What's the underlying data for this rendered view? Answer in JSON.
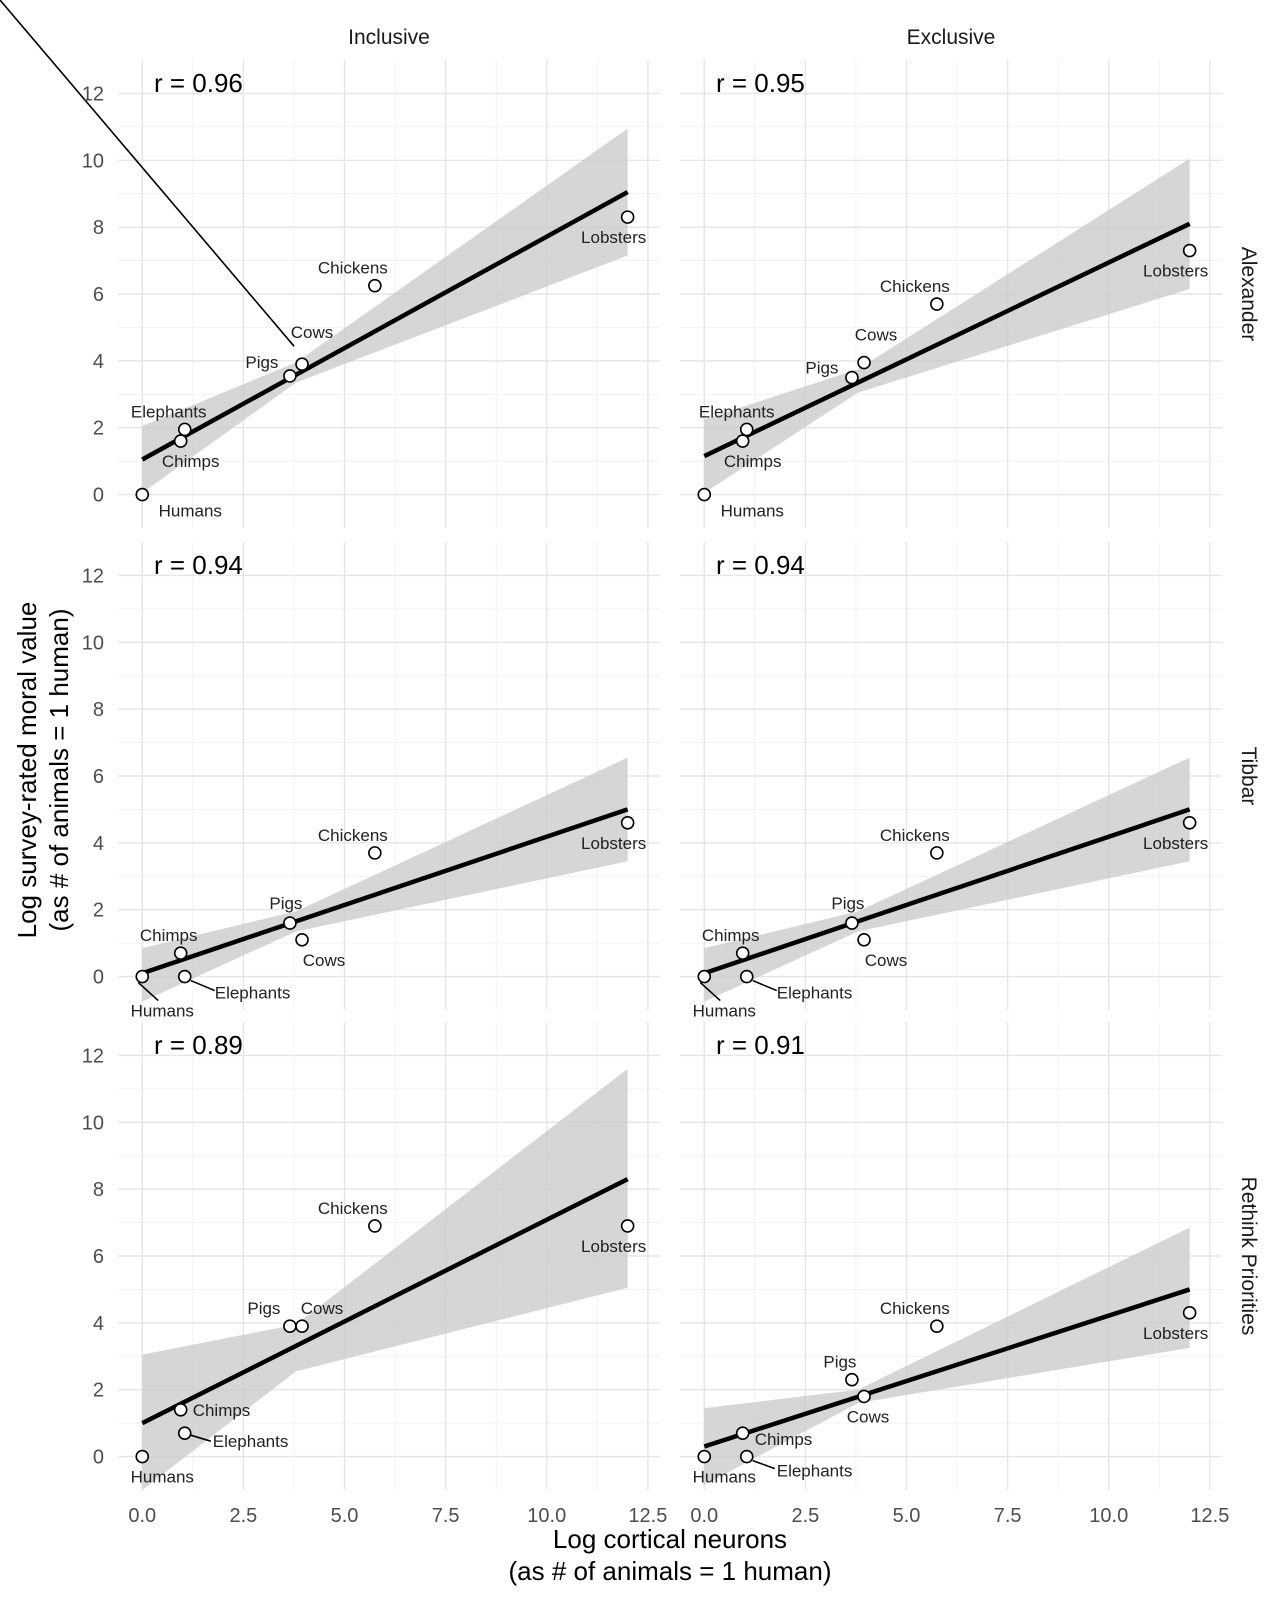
{
  "chart_data": {
    "type": "scatter",
    "facet_columns": [
      "Inclusive",
      "Exclusive"
    ],
    "facet_rows": [
      "Alexander",
      "Tibbar",
      "Rethink Priorities"
    ],
    "xlabel_line1": "Log cortical neurons",
    "xlabel_line2": "(as # of animals = 1 human)",
    "ylabel_line1": "Log survey-rated moral value",
    "ylabel_line2": "(as # of animals = 1 human)",
    "xlim": [
      -0.6,
      12.8
    ],
    "ylim": [
      -1,
      13
    ],
    "x_ticks": [
      "0.0",
      "2.5",
      "5.0",
      "7.5",
      "10.0",
      "12.5"
    ],
    "y_ticks": [
      "0",
      "2",
      "4",
      "6",
      "8",
      "10",
      "12"
    ],
    "x_tick_values": [
      0,
      2.5,
      5,
      7.5,
      10,
      12.5
    ],
    "y_tick_values": [
      0,
      2,
      4,
      6,
      8,
      10,
      12
    ],
    "panels": [
      {
        "col": "Inclusive",
        "row": "Alexander",
        "r_label": "r = 0.96",
        "fit": {
          "x": [
            0,
            12
          ],
          "y": [
            1.05,
            9.05
          ]
        },
        "band": {
          "x": [
            0,
            3.8,
            12
          ],
          "upper": [
            2.05,
            3.95,
            10.95
          ],
          "lower": [
            0.05,
            3.35,
            7.15
          ]
        },
        "points": [
          {
            "name": "Humans",
            "x": 0,
            "y": 0
          },
          {
            "name": "Chimps",
            "x": 0.95,
            "y": 1.6
          },
          {
            "name": "Elephants",
            "x": 1.05,
            "y": 1.95
          },
          {
            "name": "Pigs",
            "x": 3.65,
            "y": 3.55
          },
          {
            "name": "Cows",
            "x": 3.95,
            "y": 3.9
          },
          {
            "name": "Chickens",
            "x": 5.75,
            "y": 6.25
          },
          {
            "name": "Lobsters",
            "x": 12,
            "y": 8.3
          }
        ]
      },
      {
        "col": "Exclusive",
        "row": "Alexander",
        "r_label": "r = 0.95",
        "fit": {
          "x": [
            0,
            12
          ],
          "y": [
            1.15,
            8.1
          ]
        },
        "band": {
          "x": [
            0,
            3.8,
            12
          ],
          "upper": [
            2.25,
            3.75,
            10.05
          ],
          "lower": [
            0.05,
            3.05,
            6.15
          ]
        },
        "points": [
          {
            "name": "Humans",
            "x": 0,
            "y": 0
          },
          {
            "name": "Chimps",
            "x": 0.95,
            "y": 1.6
          },
          {
            "name": "Elephants",
            "x": 1.05,
            "y": 1.95
          },
          {
            "name": "Pigs",
            "x": 3.65,
            "y": 3.5
          },
          {
            "name": "Cows",
            "x": 3.95,
            "y": 3.95
          },
          {
            "name": "Chickens",
            "x": 5.75,
            "y": 5.7
          },
          {
            "name": "Lobsters",
            "x": 12,
            "y": 7.3
          }
        ]
      },
      {
        "col": "Inclusive",
        "row": "Tibbar",
        "r_label": "r = 0.94",
        "fit": {
          "x": [
            0,
            12
          ],
          "y": [
            0.1,
            5.0
          ]
        },
        "band": {
          "x": [
            0,
            3.8,
            12
          ],
          "upper": [
            0.85,
            1.95,
            6.55
          ],
          "lower": [
            -0.75,
            1.35,
            3.45
          ]
        },
        "points": [
          {
            "name": "Humans",
            "x": 0,
            "y": 0
          },
          {
            "name": "Chimps",
            "x": 0.95,
            "y": 0.7
          },
          {
            "name": "Elephants",
            "x": 1.05,
            "y": 0
          },
          {
            "name": "Pigs",
            "x": 3.65,
            "y": 1.6
          },
          {
            "name": "Cows",
            "x": 3.95,
            "y": 1.1
          },
          {
            "name": "Chickens",
            "x": 5.75,
            "y": 3.7
          },
          {
            "name": "Lobsters",
            "x": 12,
            "y": 4.6
          }
        ]
      },
      {
        "col": "Exclusive",
        "row": "Tibbar",
        "r_label": "r = 0.94",
        "fit": {
          "x": [
            0,
            12
          ],
          "y": [
            0.1,
            5.0
          ]
        },
        "band": {
          "x": [
            0,
            3.8,
            12
          ],
          "upper": [
            0.85,
            1.95,
            6.55
          ],
          "lower": [
            -0.75,
            1.35,
            3.45
          ]
        },
        "points": [
          {
            "name": "Humans",
            "x": 0,
            "y": 0
          },
          {
            "name": "Chimps",
            "x": 0.95,
            "y": 0.7
          },
          {
            "name": "Elephants",
            "x": 1.05,
            "y": 0
          },
          {
            "name": "Pigs",
            "x": 3.65,
            "y": 1.6
          },
          {
            "name": "Cows",
            "x": 3.95,
            "y": 1.1
          },
          {
            "name": "Chickens",
            "x": 5.75,
            "y": 3.7
          },
          {
            "name": "Lobsters",
            "x": 12,
            "y": 4.6
          }
        ]
      },
      {
        "col": "Inclusive",
        "row": "Rethink Priorities",
        "r_label": "r = 0.89",
        "fit": {
          "x": [
            0,
            12
          ],
          "y": [
            1.0,
            8.3
          ]
        },
        "band": {
          "x": [
            0,
            3.8,
            12
          ],
          "upper": [
            3.05,
            3.95,
            11.6
          ],
          "lower": [
            -1.0,
            2.55,
            5.05
          ]
        },
        "points": [
          {
            "name": "Humans",
            "x": 0,
            "y": 0
          },
          {
            "name": "Chimps",
            "x": 0.95,
            "y": 1.4
          },
          {
            "name": "Elephants",
            "x": 1.05,
            "y": 0.7
          },
          {
            "name": "Pigs",
            "x": 3.65,
            "y": 3.9
          },
          {
            "name": "Cows",
            "x": 3.95,
            "y": 3.9
          },
          {
            "name": "Chickens",
            "x": 5.75,
            "y": 6.9
          },
          {
            "name": "Lobsters",
            "x": 12,
            "y": 6.9
          }
        ]
      },
      {
        "col": "Exclusive",
        "row": "Rethink Priorities",
        "r_label": "r = 0.91",
        "fit": {
          "x": [
            0,
            12
          ],
          "y": [
            0.3,
            5.0
          ]
        },
        "band": {
          "x": [
            0,
            3.8,
            12
          ],
          "upper": [
            1.45,
            2.0,
            6.85
          ],
          "lower": [
            -0.85,
            1.6,
            3.25
          ]
        },
        "points": [
          {
            "name": "Humans",
            "x": 0,
            "y": 0
          },
          {
            "name": "Chimps",
            "x": 0.95,
            "y": 0.7
          },
          {
            "name": "Elephants",
            "x": 1.05,
            "y": 0
          },
          {
            "name": "Pigs",
            "x": 3.65,
            "y": 2.3
          },
          {
            "name": "Cows",
            "x": 3.95,
            "y": 1.8
          },
          {
            "name": "Chickens",
            "x": 5.75,
            "y": 3.9
          },
          {
            "name": "Lobsters",
            "x": 12,
            "y": 4.3
          }
        ]
      }
    ]
  }
}
